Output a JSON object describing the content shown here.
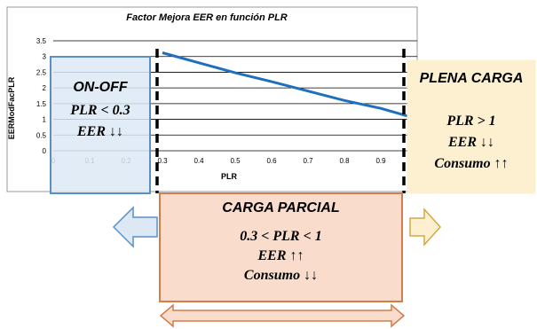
{
  "chart_data": {
    "type": "line",
    "title": "Factor Mejora EER en función PLR",
    "xlabel": "PLR",
    "ylabel": "EERModFacPLR",
    "xlim": [
      0,
      1
    ],
    "ylim": [
      0,
      3.5
    ],
    "x_ticks": [
      "0",
      "0.1",
      "0.2",
      "0.3",
      "0.4",
      "0.5",
      "0.6",
      "0.7",
      "0.8",
      "0.9"
    ],
    "y_ticks": [
      "0",
      "0.5",
      "1",
      "1.5",
      "2",
      "2.5",
      "3",
      "3.5"
    ],
    "grid": "horizontal",
    "series": [
      {
        "color": "#1f6fc0",
        "x": [
          0.3,
          0.4,
          0.5,
          0.6,
          0.7,
          0.8,
          0.9,
          1.0
        ],
        "y": [
          3.12,
          2.8,
          2.48,
          2.2,
          1.9,
          1.6,
          1.35,
          1.02
        ]
      }
    ]
  },
  "regions": {
    "onoff": {
      "title": "ON-OFF",
      "line1": "PLR < 0.3",
      "line2": "EER ↓↓",
      "fill": "#dce9f5",
      "stroke": "#5b8fc7"
    },
    "plena": {
      "title": "PLENA CARGA",
      "line1": "PLR > 1",
      "line2": "EER ↓↓",
      "line3": "Consumo ↑↑",
      "fill": "#fdf0d0",
      "stroke": "#d4a843"
    },
    "parcial": {
      "title": "CARGA PARCIAL",
      "line1": "0.3 < PLR < 1",
      "line2": "EER ↑↑",
      "line3": "Consumo ↓↓",
      "fill": "#f9dccb",
      "stroke": "#d27d4a"
    }
  },
  "colors": {
    "arrow_left_fill": "#dce9f5",
    "arrow_left_stroke": "#5b8fc7",
    "arrow_right_fill": "#fdf0d0",
    "arrow_right_stroke": "#d4a843",
    "arrow_double_fill": "#f9dccb",
    "arrow_double_stroke": "#d27d4a"
  }
}
